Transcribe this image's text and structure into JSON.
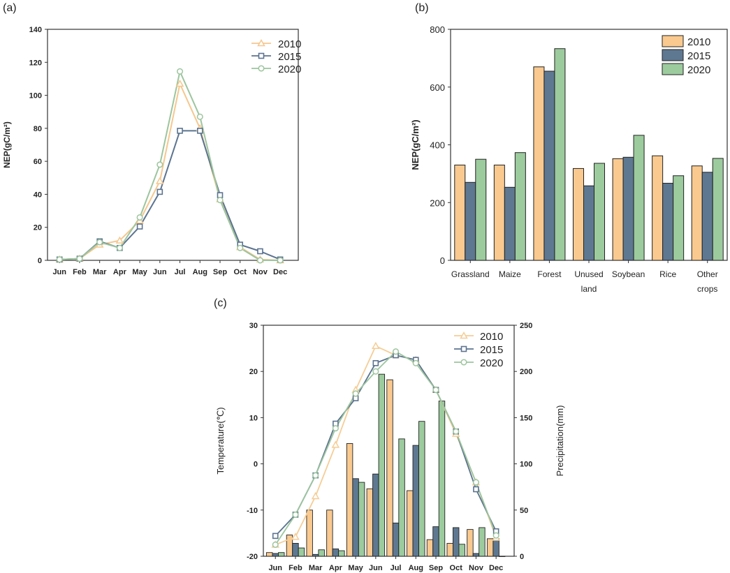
{
  "chart_data": [
    {
      "panel": "(a)",
      "type": "line",
      "categories": [
        "Jun",
        "Feb",
        "Mar",
        "Apr",
        "May",
        "Jun",
        "Jul",
        "Aug",
        "Sep",
        "Oct",
        "Nov",
        "Dec"
      ],
      "ylabel": "NEP(gC/m²)",
      "ylim": [
        0,
        140
      ],
      "yticks": [
        0,
        20,
        40,
        60,
        80,
        100,
        120,
        140
      ],
      "legend_position": "top-right",
      "series": [
        {
          "name": "2010",
          "color": "#F5C78E",
          "marker": "triangle",
          "values": [
            0.5,
            1,
            9.5,
            12,
            24,
            48,
            107,
            80,
            37,
            8,
            0.5,
            0
          ]
        },
        {
          "name": "2015",
          "color": "#5B7390",
          "marker": "square",
          "values": [
            0.5,
            1,
            11.5,
            7.5,
            20.5,
            41.5,
            78.5,
            78.5,
            39.5,
            9.5,
            5.5,
            0.5
          ]
        },
        {
          "name": "2020",
          "color": "#9CC59E",
          "marker": "circle",
          "values": [
            0.5,
            1,
            11,
            7.5,
            26,
            58,
            114.5,
            87,
            36.5,
            7.5,
            0,
            0
          ]
        }
      ]
    },
    {
      "panel": "(b)",
      "type": "bar",
      "categories": [
        "Grassland",
        "Maize",
        "Forest",
        "Unused land",
        "Soybean",
        "Rice",
        "Other crops"
      ],
      "category_lines": [
        [
          "Grassland"
        ],
        [
          "Maize"
        ],
        [
          "Forest"
        ],
        [
          "Unused",
          "land"
        ],
        [
          "Soybean"
        ],
        [
          "Rice"
        ],
        [
          "Other",
          "crops"
        ]
      ],
      "ylabel": "NEP(gC/m²)",
      "ylim": [
        0,
        800
      ],
      "yticks": [
        0,
        200,
        400,
        600,
        800
      ],
      "legend_position": "top-right",
      "series": [
        {
          "name": "2010",
          "color": "#F9C98F",
          "values": [
            330,
            330,
            670,
            318,
            352,
            362,
            327
          ]
        },
        {
          "name": "2015",
          "color": "#5F7892",
          "values": [
            270,
            253,
            655,
            258,
            357,
            267,
            305
          ]
        },
        {
          "name": "2020",
          "color": "#9CCB9E",
          "values": [
            350,
            373,
            733,
            336,
            433,
            293,
            353
          ]
        }
      ]
    },
    {
      "panel": "(c)",
      "type": "bar+line",
      "categories": [
        "Jun",
        "Feb",
        "Mar",
        "Apr",
        "May",
        "Jun",
        "Jul",
        "Aug",
        "Sep",
        "Oct",
        "Nov",
        "Dec"
      ],
      "ylabel_left": "Temperature(℃)",
      "ylabel_right": "Precipitation(mm)",
      "ylim_left": [
        -20,
        30
      ],
      "yticks_left": [
        -20,
        -10,
        0,
        10,
        20,
        30
      ],
      "ylim_right": [
        0,
        250
      ],
      "yticks_right": [
        0,
        50,
        100,
        150,
        200,
        250
      ],
      "legend_position": "top-right",
      "temperature_series": [
        {
          "name": "2010",
          "color": "#F5CD96",
          "marker": "triangle",
          "values": [
            -17.5,
            -15.8,
            -7,
            4.1,
            16,
            25.5,
            23.5,
            22.5,
            16,
            6.5,
            -4,
            -16
          ]
        },
        {
          "name": "2015",
          "color": "#5B7390",
          "marker": "square",
          "values": [
            -15.6,
            -11,
            -2.5,
            8.7,
            14.2,
            21.8,
            23.5,
            22.5,
            16,
            7,
            -5.5,
            -14.6
          ]
        },
        {
          "name": "2020",
          "color": "#9CC59E",
          "marker": "circle",
          "values": [
            -17.5,
            -11,
            -2.5,
            7.7,
            15.2,
            20,
            24.3,
            21.8,
            16,
            7,
            -4,
            -15.5
          ]
        }
      ],
      "precipitation_series": [
        {
          "name": "2010",
          "color": "#F9C98F",
          "values": [
            4,
            23,
            50,
            50,
            122,
            73,
            191,
            71,
            18,
            14,
            29,
            19
          ]
        },
        {
          "name": "2015",
          "color": "#5F7892",
          "values": [
            3,
            14,
            2,
            8,
            84,
            89,
            36,
            120,
            32,
            31,
            3,
            19
          ]
        },
        {
          "name": "2020",
          "color": "#9CCB9E",
          "values": [
            4,
            9,
            7,
            6,
            80,
            197,
            127,
            146,
            168,
            13,
            31,
            0
          ]
        }
      ]
    }
  ]
}
